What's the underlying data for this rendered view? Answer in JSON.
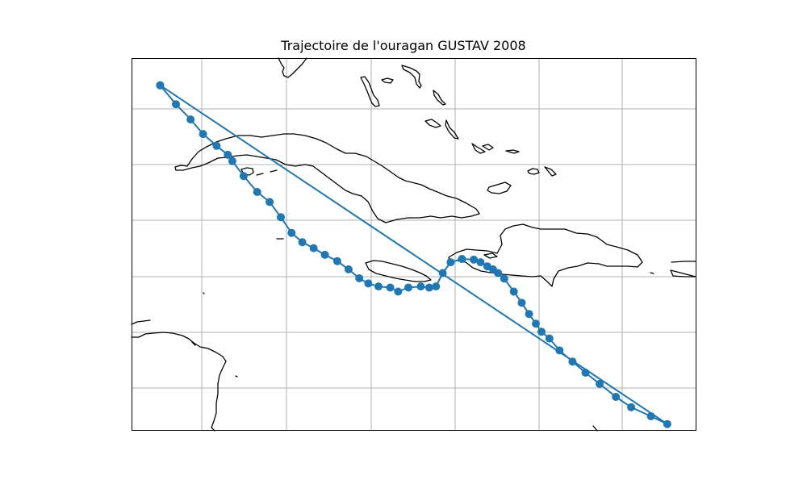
{
  "figure": {
    "title": "Trajectoire de l'ouragan GUSTAV 2008"
  },
  "style": {
    "track_color": "#1f77b4",
    "coast_color": "#000000",
    "grid_color": "#b0b0b0",
    "frame_color": "#000000",
    "background": "#ffffff"
  },
  "chart_data": {
    "type": "scatter",
    "kind": "map-track",
    "title": "Trajectoire de l'ouragan GUSTAV 2008",
    "coordinate_note": "Map prints no lat/lon tick labels; track points are given in normalized map-frame units (x: 0 = left edge, 1 = right edge; y: 0 = top edge, 1 = bottom edge).",
    "grid": true,
    "legend": "none",
    "track": [
      [
        0.05,
        0.072
      ],
      [
        0.078,
        0.123
      ],
      [
        0.104,
        0.164
      ],
      [
        0.126,
        0.203
      ],
      [
        0.15,
        0.235
      ],
      [
        0.17,
        0.259
      ],
      [
        0.178,
        0.276
      ],
      [
        0.198,
        0.316
      ],
      [
        0.222,
        0.359
      ],
      [
        0.244,
        0.386
      ],
      [
        0.264,
        0.427
      ],
      [
        0.283,
        0.469
      ],
      [
        0.302,
        0.494
      ],
      [
        0.322,
        0.51
      ],
      [
        0.342,
        0.528
      ],
      [
        0.364,
        0.545
      ],
      [
        0.384,
        0.567
      ],
      [
        0.403,
        0.591
      ],
      [
        0.419,
        0.605
      ],
      [
        0.437,
        0.613
      ],
      [
        0.458,
        0.616
      ],
      [
        0.472,
        0.627
      ],
      [
        0.49,
        0.616
      ],
      [
        0.512,
        0.613
      ],
      [
        0.527,
        0.616
      ],
      [
        0.539,
        0.613
      ],
      [
        0.551,
        0.577
      ],
      [
        0.565,
        0.548
      ],
      [
        0.585,
        0.539
      ],
      [
        0.606,
        0.541
      ],
      [
        0.618,
        0.548
      ],
      [
        0.63,
        0.559
      ],
      [
        0.64,
        0.567
      ],
      [
        0.649,
        0.577
      ],
      [
        0.66,
        0.592
      ],
      [
        0.677,
        0.627
      ],
      [
        0.691,
        0.657
      ],
      [
        0.704,
        0.687
      ],
      [
        0.716,
        0.713
      ],
      [
        0.726,
        0.735
      ],
      [
        0.74,
        0.753
      ],
      [
        0.758,
        0.785
      ],
      [
        0.781,
        0.815
      ],
      [
        0.804,
        0.845
      ],
      [
        0.829,
        0.875
      ],
      [
        0.858,
        0.91
      ],
      [
        0.885,
        0.938
      ],
      [
        0.92,
        0.962
      ],
      [
        0.949,
        0.983
      ],
      [
        0.05,
        0.072
      ]
    ]
  }
}
